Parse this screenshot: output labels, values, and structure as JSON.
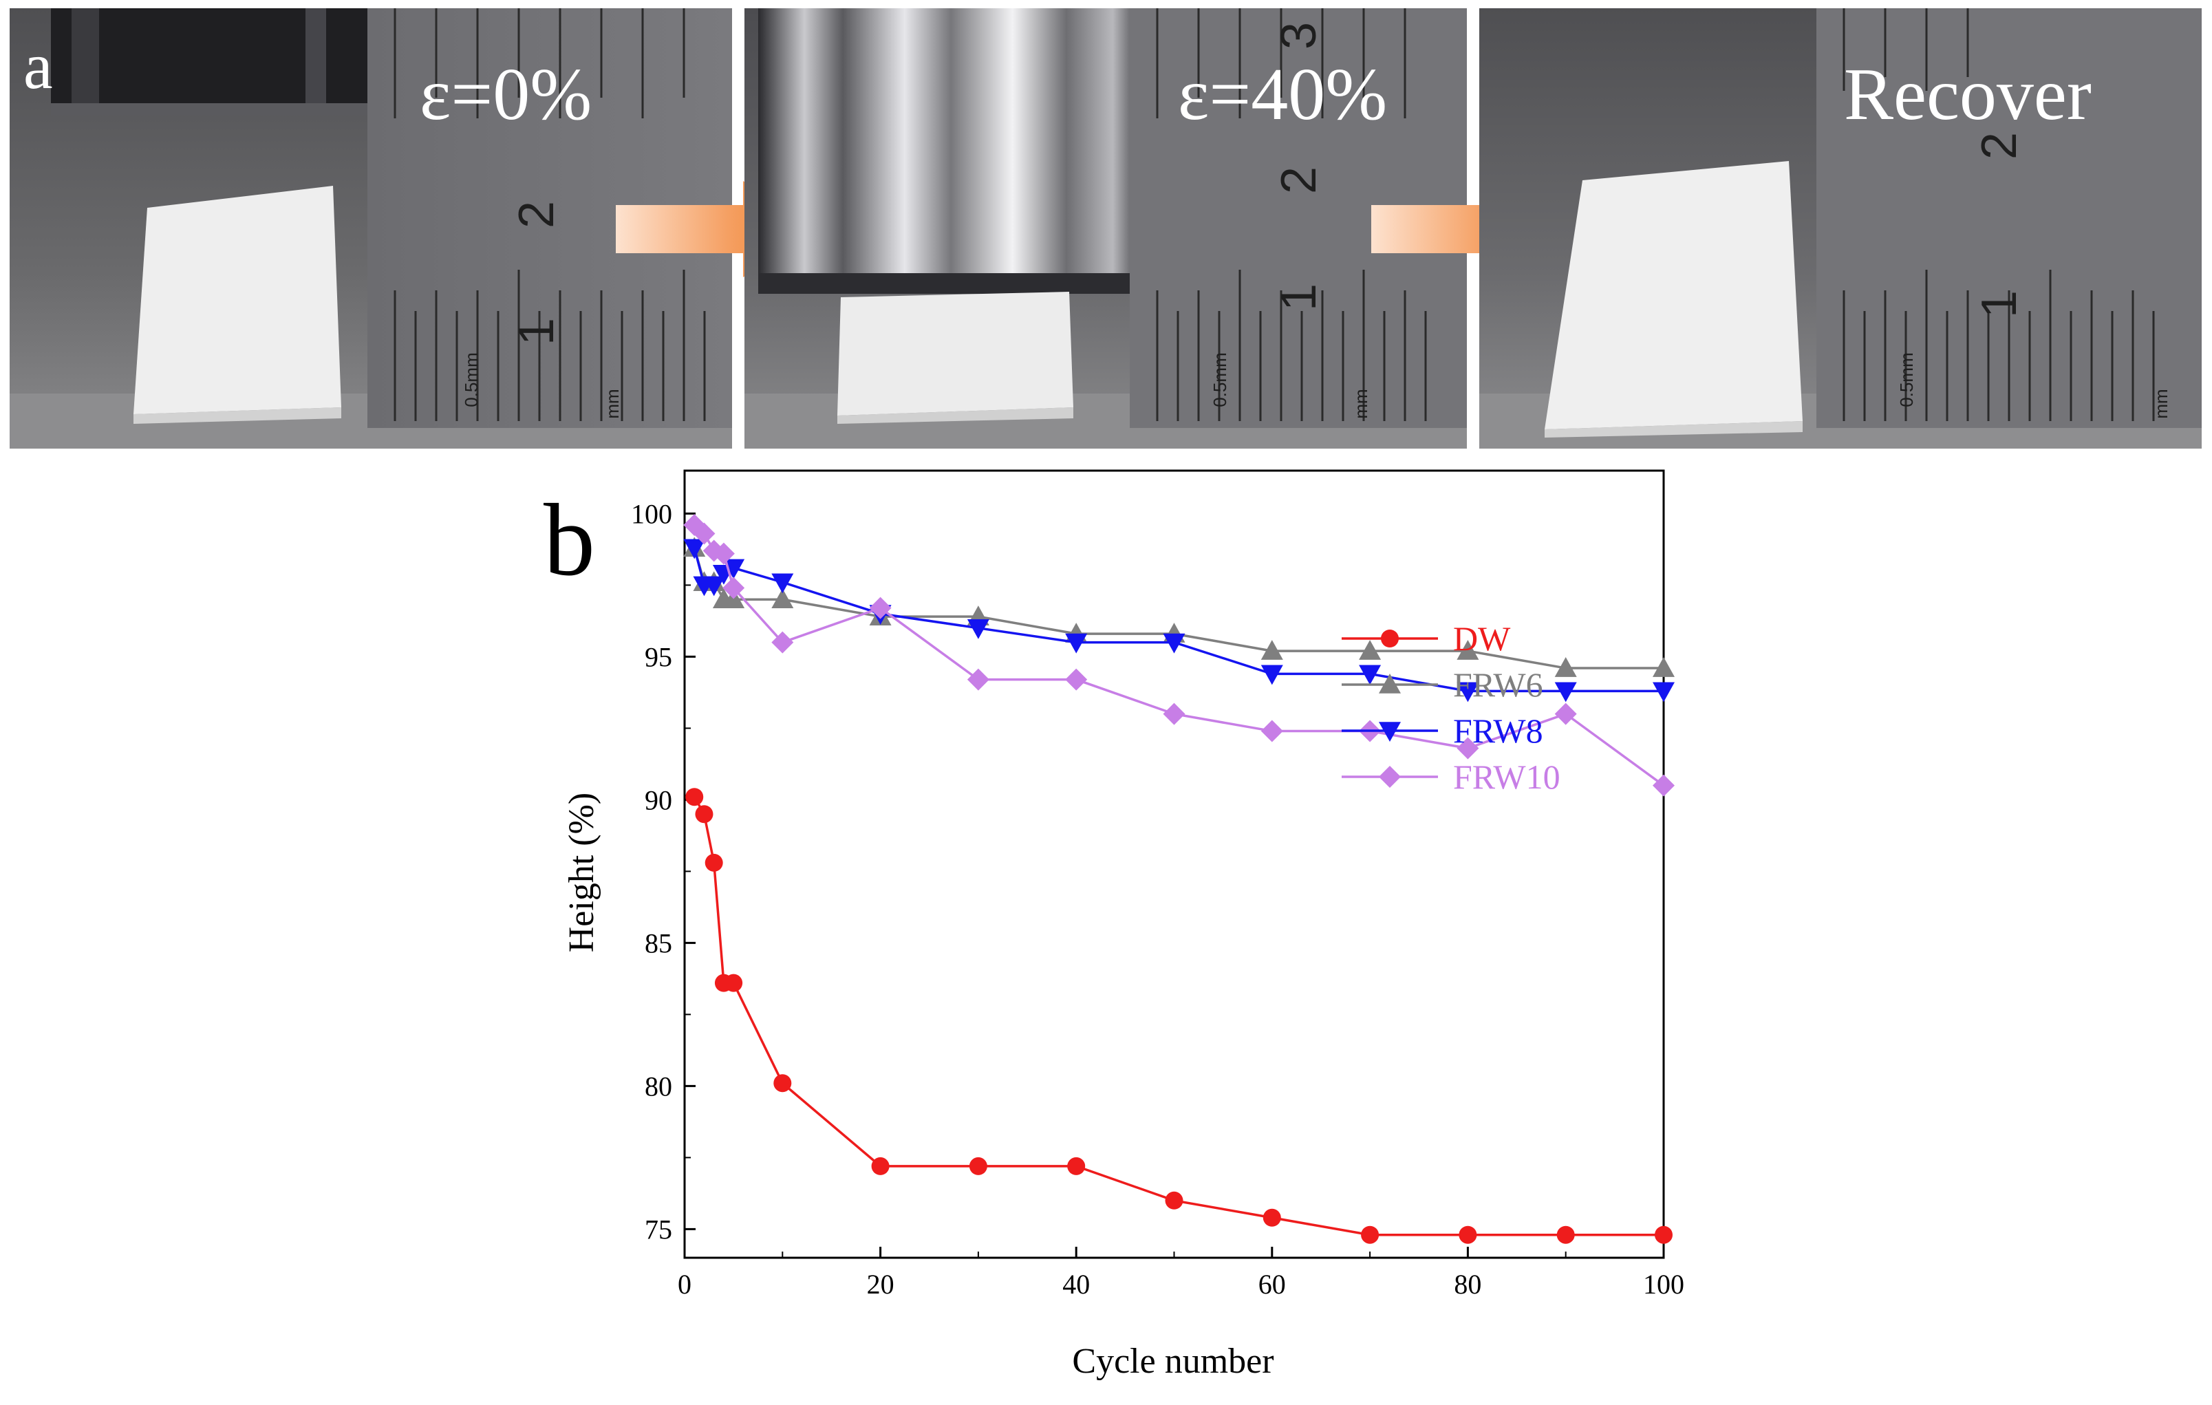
{
  "figure": {
    "panel_a_label": "a",
    "panel_b_label": "b",
    "photos": [
      {
        "label": "ε=0%",
        "ruler_numbers": [
          "2",
          "1"
        ],
        "ruler_marks": [
          "0.5mm",
          "mm"
        ]
      },
      {
        "label": "ε=40%",
        "ruler_numbers": [
          "3",
          "2",
          "1"
        ],
        "ruler_marks": [
          "0.5mm",
          "mm"
        ]
      },
      {
        "label": "Recover",
        "ruler_numbers": [
          "2",
          "1"
        ],
        "ruler_marks": [
          "0.5mm",
          "mm"
        ]
      }
    ],
    "colors": {
      "arrow": "#f07a20",
      "DW": "#ee1c1c",
      "FRW6": "#7f7f7f",
      "FRW8": "#1414f0",
      "FRW10": "#c77ee6"
    }
  },
  "chart_data": {
    "type": "line",
    "title": "",
    "xlabel": "Cycle number",
    "ylabel": "Height (%)",
    "xlim": [
      0,
      100
    ],
    "ylim": [
      74,
      101.5
    ],
    "xticks": [
      0,
      20,
      40,
      60,
      80,
      100
    ],
    "yticks": [
      75,
      80,
      85,
      90,
      95,
      100
    ],
    "grid": false,
    "legend_position": "center-right",
    "series": [
      {
        "name": "DW",
        "color": "#ee1c1c",
        "marker": "circle",
        "x": [
          1,
          2,
          3,
          4,
          5,
          10,
          20,
          30,
          40,
          50,
          60,
          70,
          80,
          90,
          100
        ],
        "y": [
          90.1,
          89.5,
          87.8,
          83.6,
          83.6,
          80.1,
          77.2,
          77.2,
          77.2,
          76.0,
          75.4,
          74.8,
          74.8,
          74.8,
          74.8
        ]
      },
      {
        "name": "FRW6",
        "color": "#7f7f7f",
        "marker": "triangle-up",
        "x": [
          1,
          2,
          3,
          4,
          5,
          10,
          20,
          30,
          40,
          50,
          60,
          70,
          80,
          90,
          100
        ],
        "y": [
          98.8,
          97.6,
          97.6,
          97.0,
          97.0,
          97.0,
          96.4,
          96.4,
          95.8,
          95.8,
          95.2,
          95.2,
          95.2,
          94.6,
          94.6
        ]
      },
      {
        "name": "FRW8",
        "color": "#1414f0",
        "marker": "triangle-down",
        "x": [
          1,
          2,
          3,
          4,
          5,
          10,
          20,
          30,
          40,
          50,
          60,
          70,
          80,
          90,
          100
        ],
        "y": [
          98.8,
          97.5,
          97.5,
          97.9,
          98.1,
          97.6,
          96.5,
          96.0,
          95.5,
          95.5,
          94.4,
          94.4,
          93.8,
          93.8,
          93.8
        ]
      },
      {
        "name": "FRW10",
        "color": "#c77ee6",
        "marker": "diamond",
        "x": [
          1,
          2,
          3,
          4,
          5,
          10,
          20,
          30,
          40,
          50,
          60,
          70,
          80,
          90,
          100
        ],
        "y": [
          99.6,
          99.3,
          98.7,
          98.6,
          97.4,
          95.5,
          96.7,
          94.2,
          94.2,
          93.0,
          92.4,
          92.4,
          91.8,
          93.0,
          90.5
        ]
      }
    ]
  }
}
